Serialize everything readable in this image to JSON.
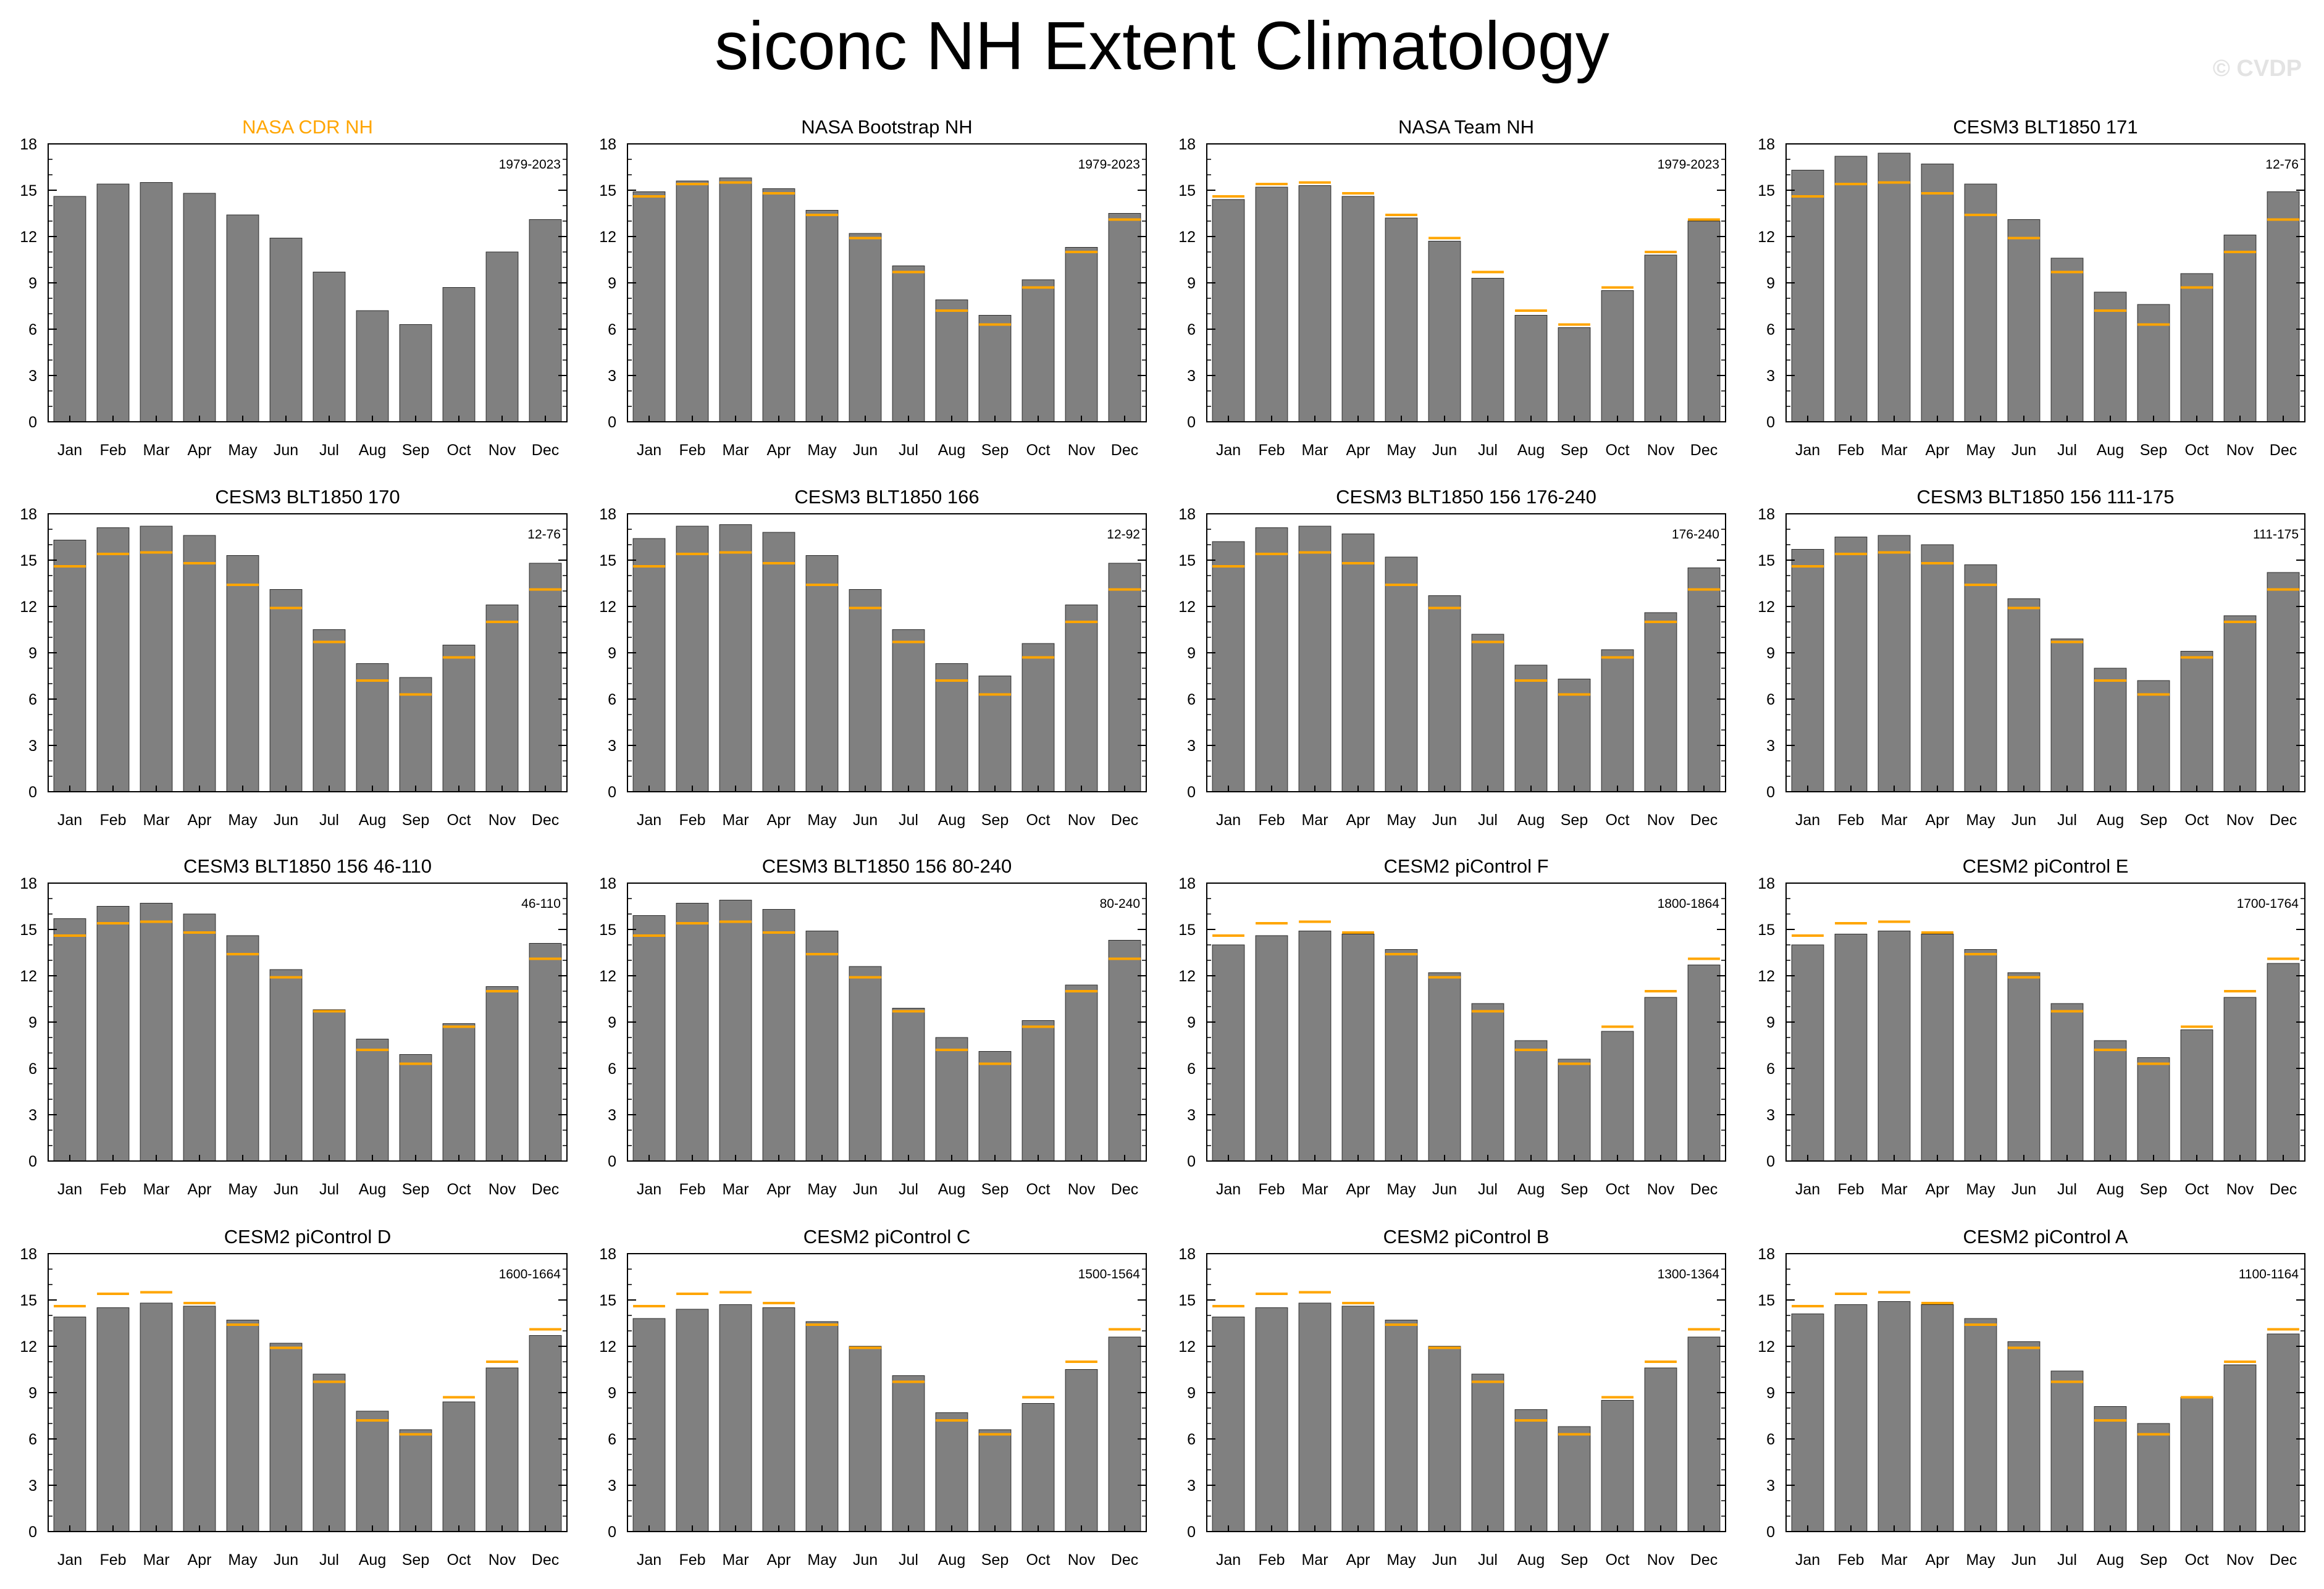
{
  "title": "siconc NH Extent Climatology",
  "watermark": "© CVDP",
  "colors": {
    "bar": "#808080",
    "bar_edge": "#2b2b2b",
    "obs_line": "#ffa500",
    "obs_title": "#ffa500"
  },
  "chart_data": {
    "type": "bar",
    "categories": [
      "Jan",
      "Feb",
      "Mar",
      "Apr",
      "May",
      "Jun",
      "Jul",
      "Aug",
      "Sep",
      "Oct",
      "Nov",
      "Dec"
    ],
    "ylim": [
      0,
      18
    ],
    "yticks": [
      "0",
      "3",
      "6",
      "9",
      "12",
      "15",
      "18"
    ],
    "reference": {
      "name": "NASA CDR NH",
      "values": [
        14.6,
        15.4,
        15.5,
        14.8,
        13.4,
        11.9,
        9.7,
        7.2,
        6.3,
        8.7,
        11.0,
        13.1
      ]
    },
    "panels": [
      {
        "title": "NASA CDR NH",
        "period": "1979-2023",
        "is_reference": true,
        "values": [
          14.6,
          15.4,
          15.5,
          14.8,
          13.4,
          11.9,
          9.7,
          7.2,
          6.3,
          8.7,
          11.0,
          13.1
        ]
      },
      {
        "title": "NASA Bootstrap NH",
        "period": "1979-2023",
        "values": [
          14.9,
          15.6,
          15.8,
          15.1,
          13.7,
          12.2,
          10.1,
          7.9,
          6.9,
          9.2,
          11.3,
          13.5
        ]
      },
      {
        "title": "NASA Team NH",
        "period": "1979-2023",
        "values": [
          14.4,
          15.2,
          15.3,
          14.6,
          13.2,
          11.7,
          9.3,
          6.9,
          6.1,
          8.5,
          10.8,
          13.0
        ]
      },
      {
        "title": "CESM3 BLT1850 171",
        "period": "12-76",
        "values": [
          16.3,
          17.2,
          17.4,
          16.7,
          15.4,
          13.1,
          10.6,
          8.4,
          7.6,
          9.6,
          12.1,
          14.9
        ]
      },
      {
        "title": "CESM3 BLT1850 170",
        "period": "12-76",
        "values": [
          16.3,
          17.1,
          17.2,
          16.6,
          15.3,
          13.1,
          10.5,
          8.3,
          7.4,
          9.5,
          12.1,
          14.8
        ]
      },
      {
        "title": "CESM3 BLT1850 166",
        "period": "12-92",
        "values": [
          16.4,
          17.2,
          17.3,
          16.8,
          15.3,
          13.1,
          10.5,
          8.3,
          7.5,
          9.6,
          12.1,
          14.8
        ]
      },
      {
        "title": "CESM3 BLT1850 156 176-240",
        "period": "176-240",
        "values": [
          16.2,
          17.1,
          17.2,
          16.7,
          15.2,
          12.7,
          10.2,
          8.2,
          7.3,
          9.2,
          11.6,
          14.5
        ]
      },
      {
        "title": "CESM3 BLT1850 156 111-175",
        "period": "111-175",
        "values": [
          15.7,
          16.5,
          16.6,
          16.0,
          14.7,
          12.5,
          9.9,
          8.0,
          7.2,
          9.1,
          11.4,
          14.2
        ]
      },
      {
        "title": "CESM3 BLT1850 156 46-110",
        "period": "46-110",
        "values": [
          15.7,
          16.5,
          16.7,
          16.0,
          14.6,
          12.4,
          9.8,
          7.9,
          6.9,
          8.9,
          11.3,
          14.1
        ]
      },
      {
        "title": "CESM3 BLT1850 156 80-240",
        "period": "80-240",
        "values": [
          15.9,
          16.7,
          16.9,
          16.3,
          14.9,
          12.6,
          9.9,
          8.0,
          7.1,
          9.1,
          11.4,
          14.3
        ]
      },
      {
        "title": "CESM2 piControl F",
        "period": "1800-1864",
        "values": [
          14.0,
          14.6,
          14.9,
          14.7,
          13.7,
          12.2,
          10.2,
          7.8,
          6.6,
          8.4,
          10.6,
          12.7
        ]
      },
      {
        "title": "CESM2 piControl E",
        "period": "1700-1764",
        "values": [
          14.0,
          14.7,
          14.9,
          14.7,
          13.7,
          12.2,
          10.2,
          7.8,
          6.7,
          8.5,
          10.6,
          12.8
        ]
      },
      {
        "title": "CESM2 piControl D",
        "period": "1600-1664",
        "values": [
          13.9,
          14.5,
          14.8,
          14.6,
          13.7,
          12.2,
          10.2,
          7.8,
          6.6,
          8.4,
          10.6,
          12.7
        ]
      },
      {
        "title": "CESM2 piControl C",
        "period": "1500-1564",
        "values": [
          13.8,
          14.4,
          14.7,
          14.5,
          13.6,
          12.0,
          10.1,
          7.7,
          6.6,
          8.3,
          10.5,
          12.6
        ]
      },
      {
        "title": "CESM2 piControl B",
        "period": "1300-1364",
        "values": [
          13.9,
          14.5,
          14.8,
          14.6,
          13.7,
          12.0,
          10.2,
          7.9,
          6.8,
          8.5,
          10.6,
          12.6
        ]
      },
      {
        "title": "CESM2 piControl A",
        "period": "1100-1164",
        "values": [
          14.1,
          14.7,
          14.9,
          14.7,
          13.8,
          12.3,
          10.4,
          8.1,
          7.0,
          8.7,
          10.8,
          12.8
        ]
      }
    ]
  }
}
